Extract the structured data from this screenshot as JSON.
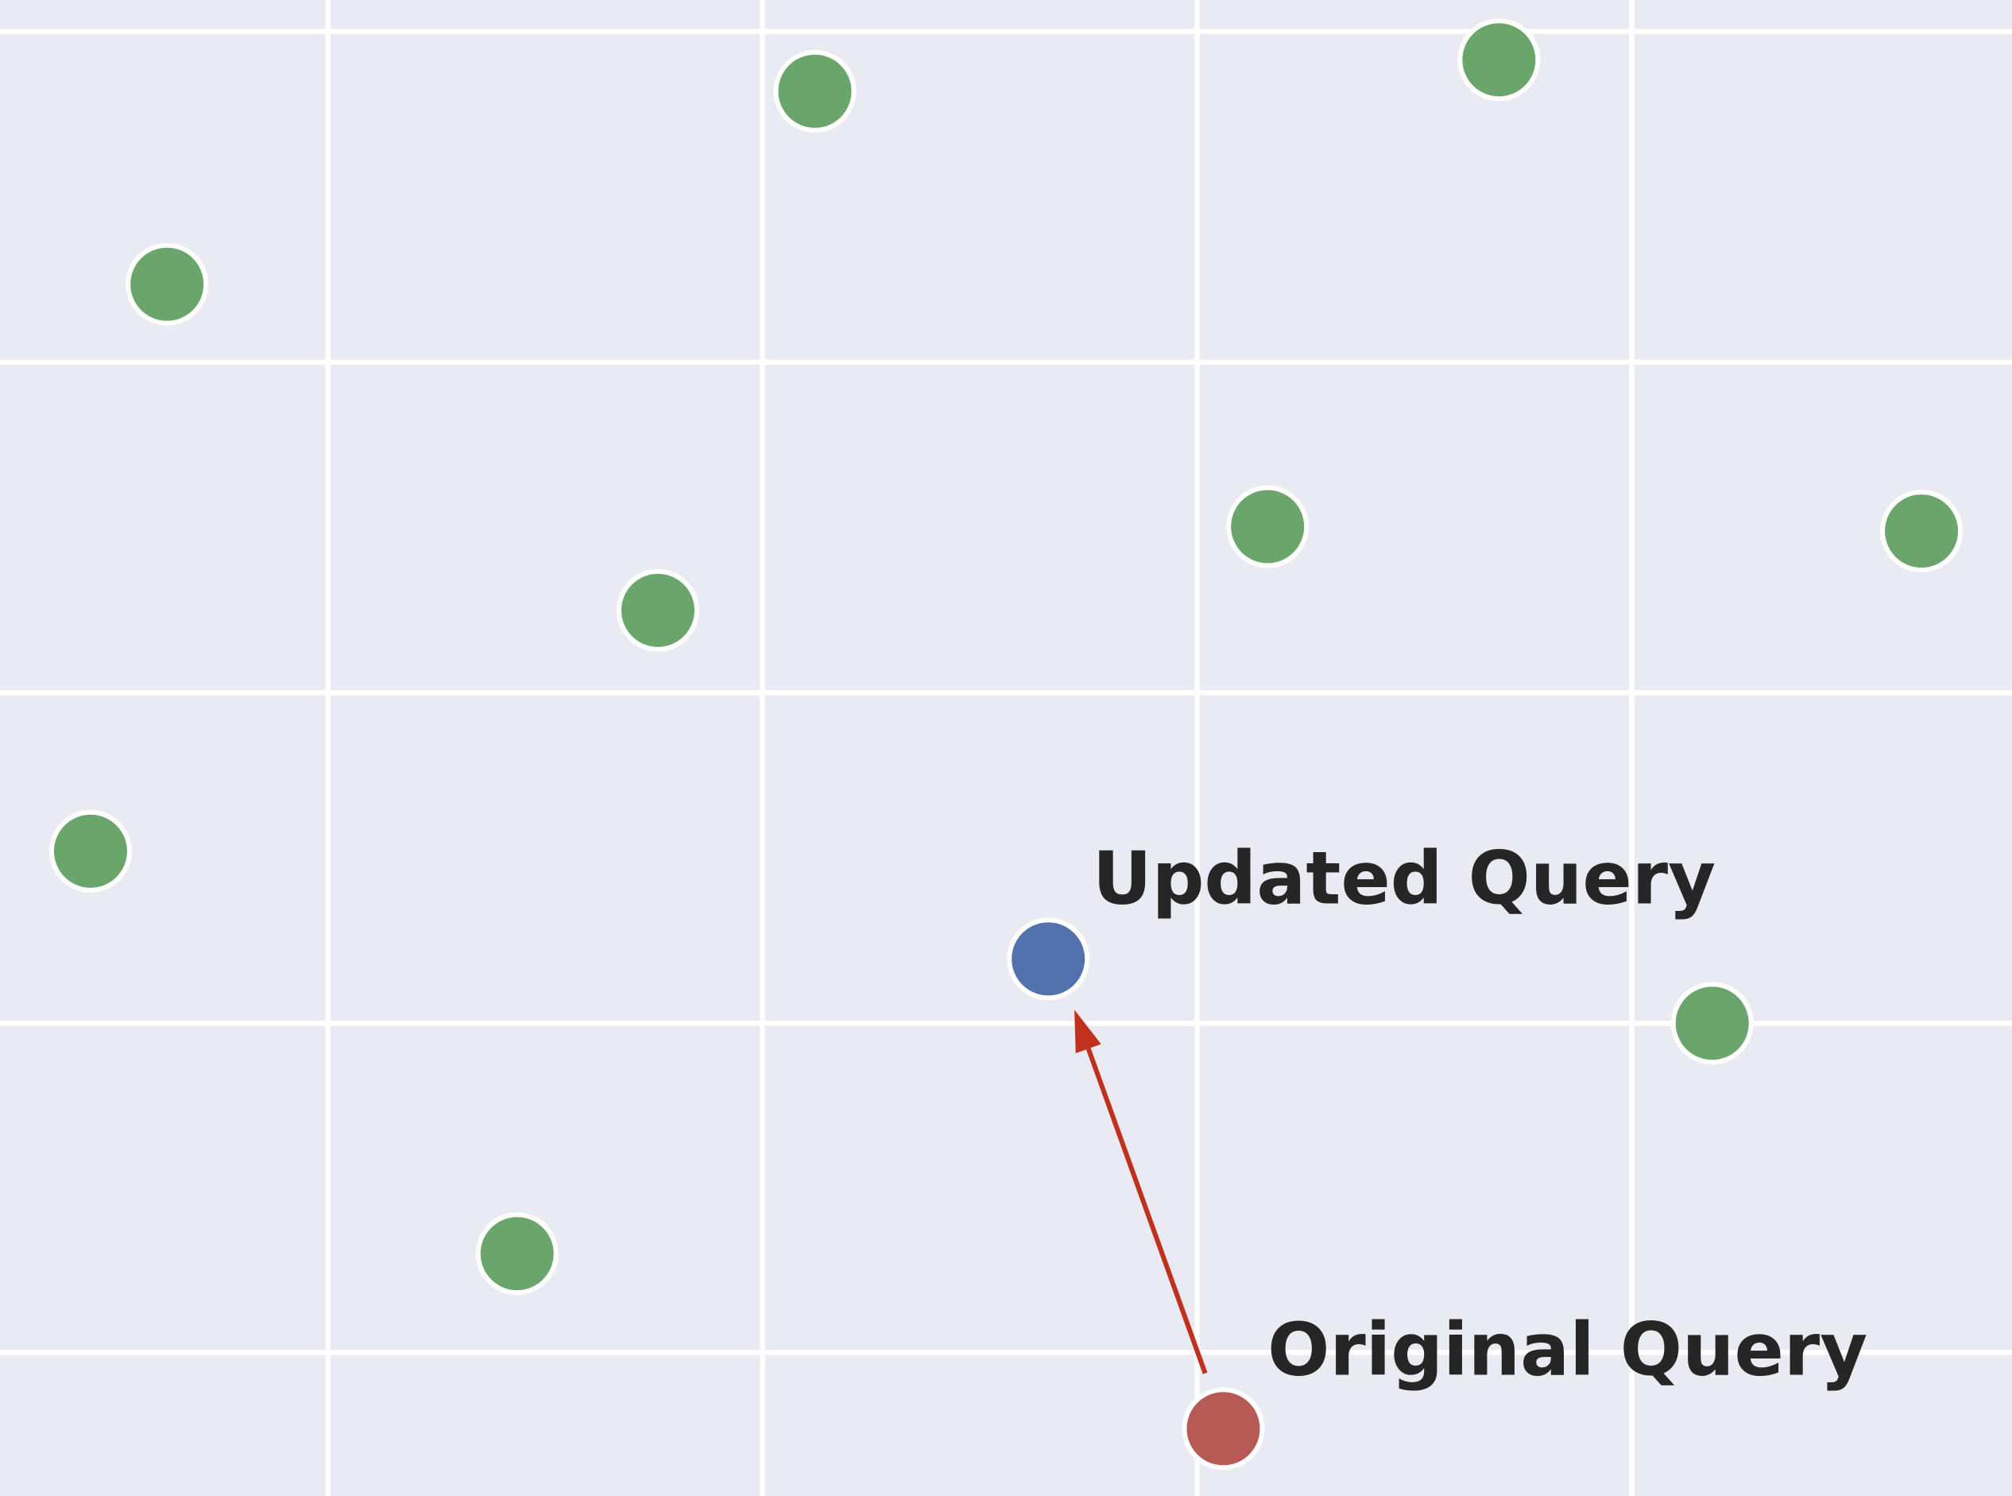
{
  "chart_data": {
    "type": "scatter",
    "title": "",
    "xlabel": "",
    "ylabel": "",
    "xlim": [
      0,
      1
    ],
    "ylim": [
      0,
      1
    ],
    "grid": true,
    "background": "#EAEAF2",
    "grid_color": "#FFFFFF",
    "xticks": [
      0.163,
      0.379,
      0.595,
      0.811
    ],
    "yticks": [
      0.096,
      0.316,
      0.537,
      0.758,
      0.979
    ],
    "series": [
      {
        "role": "documents",
        "color": "#6AA56B",
        "points": [
          {
            "x": 0.083,
            "y": 0.81
          },
          {
            "x": 0.405,
            "y": 0.939
          },
          {
            "x": 0.745,
            "y": 0.96
          },
          {
            "x": 0.327,
            "y": 0.592
          },
          {
            "x": 0.63,
            "y": 0.648
          },
          {
            "x": 0.955,
            "y": 0.645
          },
          {
            "x": 0.045,
            "y": 0.431
          },
          {
            "x": 0.851,
            "y": 0.316
          },
          {
            "x": 0.257,
            "y": 0.162
          }
        ]
      },
      {
        "role": "updated-query",
        "color": "#5371AC",
        "points": [
          {
            "x": 0.521,
            "y": 0.359
          }
        ]
      },
      {
        "role": "original-query",
        "color": "#B75A55",
        "points": [
          {
            "x": 0.608,
            "y": 0.045
          }
        ]
      }
    ],
    "annotations": [
      {
        "text": "Updated Query",
        "x": 0.543,
        "y": 0.396
      },
      {
        "text": "Original Query",
        "x": 0.63,
        "y": 0.081
      }
    ],
    "arrow": {
      "from": {
        "x": 0.599,
        "y": 0.082
      },
      "to": {
        "x": 0.534,
        "y": 0.325
      },
      "color": "#C0301E"
    }
  }
}
